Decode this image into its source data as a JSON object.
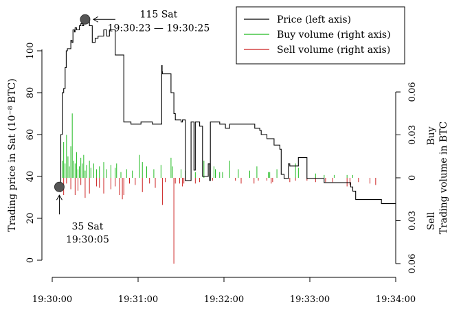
{
  "chart_data": {
    "type": "line",
    "title": "",
    "xlabel": "",
    "ylabel_left": "Trading price in Sat (10⁻⁸ BTC)",
    "ylabel_right": "Trading volume in BTC",
    "right_axis_side_labels": {
      "top": "Buy",
      "bottom": "Sell"
    },
    "x_ticks": [
      "19:30:00",
      "19:31:00",
      "19:32:00",
      "19:33:00",
      "19:34:00"
    ],
    "xlim_seconds": [
      0,
      240
    ],
    "left_ticks": [
      "0",
      "20",
      "40",
      "60",
      "80",
      "100"
    ],
    "ylim_left": [
      0,
      115
    ],
    "right_ticks": [
      "0.06",
      "0.03",
      "0",
      "0.03",
      "0.06"
    ],
    "right_tick_values": [
      0.06,
      0.03,
      0,
      -0.03,
      -0.06
    ],
    "ylim_right": [
      -0.06,
      0.06
    ],
    "legend": {
      "position": "top-right",
      "entries": [
        {
          "label": "Price (left axis)",
          "color": "#000000"
        },
        {
          "label": "Buy volume (right axis)",
          "color": "#22bb22"
        },
        {
          "label": "Sell volume (right axis)",
          "color": "#cc2222"
        }
      ]
    },
    "annotations": {
      "max": {
        "line1": "115 Sat",
        "line2": "19:30:23 — 19:30:25",
        "t": 23,
        "price": 115
      },
      "min": {
        "line1": "35 Sat",
        "line2": "19:30:05",
        "t": 5,
        "price": 35
      }
    },
    "series": [
      {
        "name": "Price (left axis)",
        "color": "#000000",
        "points": [
          [
            3,
            35
          ],
          [
            5,
            35
          ],
          [
            6,
            60
          ],
          [
            7,
            80
          ],
          [
            8,
            82
          ],
          [
            9,
            92
          ],
          [
            9.8,
            100
          ],
          [
            10.6,
            101
          ],
          [
            12,
            101
          ],
          [
            13,
            105
          ],
          [
            13.8,
            104
          ],
          [
            14.5,
            110
          ],
          [
            15.5,
            109
          ],
          [
            16,
            111
          ],
          [
            17,
            110
          ],
          [
            19,
            112
          ],
          [
            20,
            113
          ],
          [
            21,
            112
          ],
          [
            22,
            114
          ],
          [
            24,
            115
          ],
          [
            26,
            112
          ],
          [
            28,
            104
          ],
          [
            30,
            106
          ],
          [
            32,
            107
          ],
          [
            34,
            107
          ],
          [
            36,
            110
          ],
          [
            38,
            107
          ],
          [
            40,
            110
          ],
          [
            42,
            110
          ],
          [
            44,
            98
          ],
          [
            48,
            98
          ],
          [
            50,
            66
          ],
          [
            55,
            65
          ],
          [
            59,
            65
          ],
          [
            62,
            66
          ],
          [
            65,
            66
          ],
          [
            66,
            66
          ],
          [
            70,
            65
          ],
          [
            76,
            65
          ],
          [
            76.5,
            93
          ],
          [
            76.8,
            90
          ],
          [
            77,
            89
          ],
          [
            80,
            89
          ],
          [
            83,
            80
          ],
          [
            84,
            80
          ],
          [
            85,
            70
          ],
          [
            86,
            67
          ],
          [
            89,
            67
          ],
          [
            90,
            66
          ],
          [
            91,
            67
          ],
          [
            93,
            38
          ],
          [
            97,
            66
          ],
          [
            99,
            43
          ],
          [
            100,
            66
          ],
          [
            103,
            64
          ],
          [
            105,
            40
          ],
          [
            108,
            40
          ],
          [
            109,
            46
          ],
          [
            110,
            38
          ],
          [
            110.5,
            66
          ],
          [
            114,
            66
          ],
          [
            117,
            65
          ],
          [
            118,
            65
          ],
          [
            121,
            63
          ],
          [
            124,
            65
          ],
          [
            130,
            65
          ],
          [
            141,
            65
          ],
          [
            141.5,
            63
          ],
          [
            145,
            62
          ],
          [
            146,
            60
          ],
          [
            150,
            58
          ],
          [
            155,
            55
          ],
          [
            159,
            53
          ],
          [
            160,
            41
          ],
          [
            162,
            39
          ],
          [
            165,
            46
          ],
          [
            166,
            45
          ],
          [
            171,
            45
          ],
          [
            172,
            49
          ],
          [
            178,
            39
          ],
          [
            180,
            39
          ],
          [
            190,
            37
          ],
          [
            197,
            37
          ],
          [
            208,
            37
          ],
          [
            208.5,
            35
          ],
          [
            210,
            33
          ],
          [
            212,
            29
          ],
          [
            230,
            27
          ],
          [
            240,
            27
          ]
        ]
      },
      {
        "name": "Buy volume (right axis)",
        "color": "#22bb22",
        "bars": [
          [
            6,
            0.018
          ],
          [
            7,
            0.012
          ],
          [
            8,
            0.025
          ],
          [
            9,
            0.01
          ],
          [
            10,
            0.03
          ],
          [
            11,
            0.015
          ],
          [
            12,
            0.008
          ],
          [
            13,
            0.022
          ],
          [
            14,
            0.045
          ],
          [
            15,
            0.012
          ],
          [
            16,
            0.01
          ],
          [
            17,
            0.018
          ],
          [
            18,
            0.006
          ],
          [
            19,
            0.008
          ],
          [
            20,
            0.014
          ],
          [
            21,
            0.01
          ],
          [
            22,
            0.016
          ],
          [
            23,
            0.005
          ],
          [
            24,
            0.009
          ],
          [
            26,
            0.012
          ],
          [
            27,
            0.007
          ],
          [
            29,
            0.01
          ],
          [
            31,
            0.006
          ],
          [
            33,
            0.008
          ],
          [
            36,
            0.011
          ],
          [
            38,
            0.006
          ],
          [
            41,
            0.009
          ],
          [
            44,
            0.007
          ],
          [
            45,
            0.01
          ],
          [
            48,
            0.004
          ],
          [
            52,
            0.006
          ],
          [
            56,
            0.005
          ],
          [
            61,
            0.016
          ],
          [
            63,
            0.011
          ],
          [
            66,
            0.008
          ],
          [
            71,
            0.006
          ],
          [
            76,
            0.009
          ],
          [
            83,
            0.014
          ],
          [
            84,
            0.008
          ],
          [
            90,
            0.006
          ],
          [
            93,
            0.005
          ],
          [
            100,
            0.004
          ],
          [
            106,
            0.012
          ],
          [
            110,
            0.003
          ],
          [
            113,
            0.008
          ],
          [
            114,
            0.006
          ],
          [
            117,
            0.004
          ],
          [
            119,
            0.004
          ],
          [
            124,
            0.012
          ],
          [
            130,
            0.006
          ],
          [
            138,
            0.005
          ],
          [
            143,
            0.008
          ],
          [
            151,
            0.004
          ],
          [
            152,
            0.004
          ],
          [
            157,
            0.006
          ],
          [
            170,
            0.01
          ],
          [
            172,
            0.007
          ],
          [
            184,
            0.003
          ],
          [
            190,
            0.002
          ],
          [
            197,
            0.002
          ],
          [
            206,
            0.002
          ],
          [
            210,
            0.002
          ]
        ]
      },
      {
        "name": "Sell volume (right axis)",
        "color": "#cc2222",
        "bars": [
          [
            6,
            -0.01
          ],
          [
            8,
            -0.012
          ],
          [
            10,
            -0.004
          ],
          [
            13,
            -0.008
          ],
          [
            16,
            -0.012
          ],
          [
            18,
            -0.009
          ],
          [
            20,
            -0.005
          ],
          [
            23,
            -0.014
          ],
          [
            26,
            -0.011
          ],
          [
            31,
            -0.006
          ],
          [
            33,
            -0.007
          ],
          [
            36,
            -0.011
          ],
          [
            41,
            -0.008
          ],
          [
            44,
            -0.006
          ],
          [
            47,
            -0.012
          ],
          [
            49,
            -0.015
          ],
          [
            50,
            -0.012
          ],
          [
            54,
            -0.004
          ],
          [
            58,
            -0.005
          ],
          [
            63,
            -0.01
          ],
          [
            68,
            -0.004
          ],
          [
            72,
            -0.007
          ],
          [
            77,
            -0.019
          ],
          [
            79,
            -0.003
          ],
          [
            85,
            -0.06
          ],
          [
            86,
            -0.004
          ],
          [
            89,
            -0.004
          ],
          [
            91,
            -0.006
          ],
          [
            92,
            -0.004
          ],
          [
            93,
            -0.002
          ],
          [
            100,
            -0.004
          ],
          [
            103,
            -0.003
          ],
          [
            112,
            -0.002
          ],
          [
            128,
            -0.002
          ],
          [
            132,
            -0.004
          ],
          [
            141,
            -0.004
          ],
          [
            144,
            -0.002
          ],
          [
            150,
            -0.002
          ],
          [
            153,
            -0.004
          ],
          [
            154,
            -0.003
          ],
          [
            166,
            -0.003
          ],
          [
            170,
            -0.002
          ],
          [
            178,
            -0.002
          ],
          [
            184,
            -0.003
          ],
          [
            191,
            -0.003
          ],
          [
            196,
            -0.003
          ],
          [
            206,
            -0.006
          ],
          [
            208,
            -0.005
          ],
          [
            214,
            -0.003
          ],
          [
            222,
            -0.004
          ],
          [
            226,
            -0.005
          ]
        ]
      }
    ]
  }
}
